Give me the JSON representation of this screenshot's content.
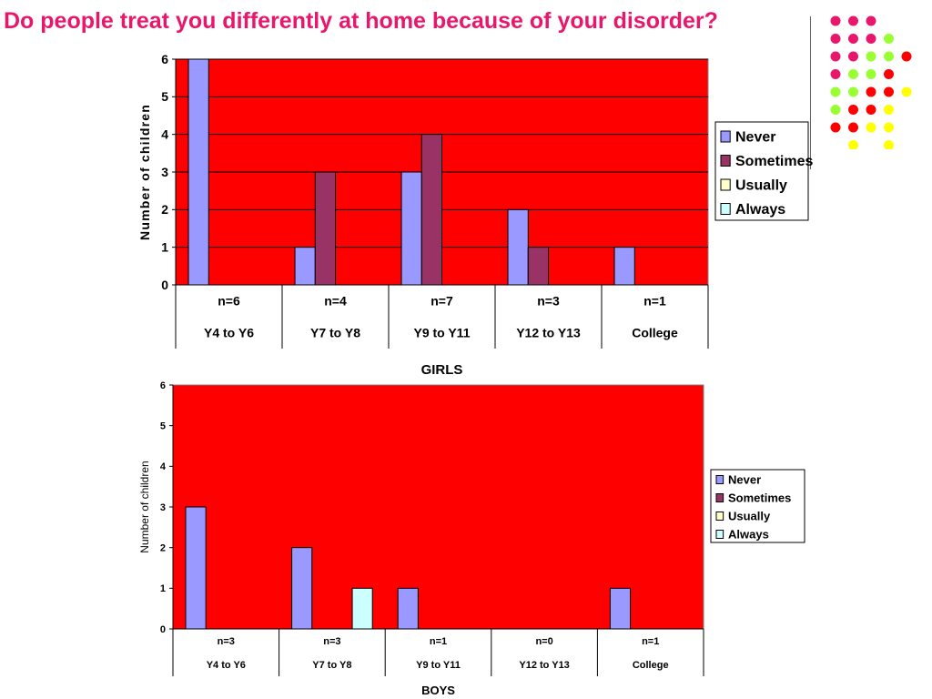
{
  "slide": {
    "title": "Do people treat you differently at home because of your disorder?"
  },
  "decoration": {
    "dot_rows": [
      [
        "#e8176b",
        "#e8176b",
        "#e8176b"
      ],
      [
        "#e8176b",
        "#e8176b",
        "#e8176b",
        "#99ff33"
      ],
      [
        "#e8176b",
        "#e8176b",
        "#99ff33",
        "#99ff33",
        "#ff0000"
      ],
      [
        "#e8176b",
        "#99ff33",
        "#99ff33",
        "#ff0000"
      ],
      [
        "#99ff33",
        "#99ff33",
        "#ff0000",
        "#ff0000",
        "#ffff00"
      ],
      [
        "#99ff33",
        "#ff0000",
        "#ff0000",
        "#ffff00"
      ],
      [
        "#ff0000",
        "#ff0000",
        "#ffff00",
        "#ffff00"
      ],
      [
        null,
        "#ffff00",
        null,
        "#ffff00"
      ]
    ]
  },
  "colors": {
    "plot_bg": "#ff0000",
    "never": "#9999ff",
    "sometimes": "#993366",
    "usually": "#ffffcc",
    "always": "#ccffff",
    "title": "#e8176b"
  },
  "chart_data": [
    {
      "type": "bar",
      "title": "",
      "xlabel": "GIRLS",
      "ylabel": "Number of children",
      "ylim": [
        0,
        6
      ],
      "yticks": [
        "0",
        "1",
        "2",
        "3",
        "4",
        "5",
        "6"
      ],
      "categories": [
        "Y4 to Y6",
        "Y7 to Y8",
        "Y9 to Y11",
        "Y12 to Y13",
        "College"
      ],
      "counts": [
        "n=6",
        "n=4",
        "n=7",
        "n=3",
        "n=1"
      ],
      "grid": true,
      "legend": "right",
      "series": [
        {
          "name": "Never",
          "color": "#9999ff",
          "values": [
            6,
            1,
            3,
            2,
            1
          ]
        },
        {
          "name": "Sometimes",
          "color": "#993366",
          "values": [
            0,
            3,
            4,
            1,
            0
          ]
        },
        {
          "name": "Usually",
          "color": "#ffffcc",
          "values": [
            0,
            0,
            0,
            0,
            0
          ]
        },
        {
          "name": "Always",
          "color": "#ccffff",
          "values": [
            0,
            0,
            0,
            0,
            0
          ]
        }
      ]
    },
    {
      "type": "bar",
      "title": "",
      "xlabel": "BOYS",
      "ylabel": "Number of children",
      "ylim": [
        0,
        6
      ],
      "yticks": [
        "0",
        "1",
        "2",
        "3",
        "4",
        "5",
        "6"
      ],
      "categories": [
        "Y4 to Y6",
        "Y7 to Y8",
        "Y9 to Y11",
        "Y12 to Y13",
        "College"
      ],
      "counts": [
        "n=3",
        "n=3",
        "n=1",
        "n=0",
        "n=1"
      ],
      "grid": false,
      "legend": "right",
      "series": [
        {
          "name": "Never",
          "color": "#9999ff",
          "values": [
            3,
            2,
            1,
            0,
            1
          ]
        },
        {
          "name": "Sometimes",
          "color": "#993366",
          "values": [
            0,
            0,
            0,
            0,
            0
          ]
        },
        {
          "name": "Usually",
          "color": "#ffffcc",
          "values": [
            0,
            0,
            0,
            0,
            0
          ]
        },
        {
          "name": "Always",
          "color": "#ccffff",
          "values": [
            0,
            1,
            0,
            0,
            0
          ]
        }
      ]
    }
  ]
}
